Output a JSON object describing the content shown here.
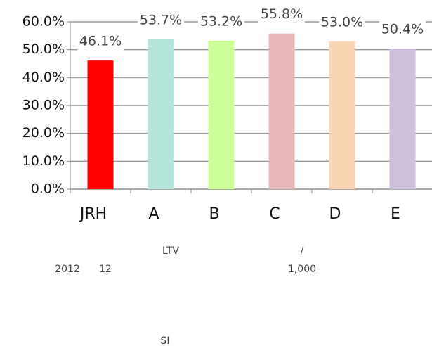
{
  "chart_data": {
    "type": "bar",
    "categories": [
      "JRH",
      "A",
      "B",
      "C",
      "D",
      "E"
    ],
    "values": [
      46.1,
      53.7,
      53.2,
      55.8,
      53.0,
      50.4
    ],
    "value_labels": [
      "46.1%",
      "53.7%",
      "53.2%",
      "55.8%",
      "53.0%",
      "50.4%"
    ],
    "colors": [
      "#ff0000",
      "#b4e6dc",
      "#ccff99",
      "#e6b8b7",
      "#fcd5b4",
      "#ccc0da"
    ],
    "ylim": [
      0,
      60
    ],
    "yticks": [
      {
        "value": 0,
        "label": "0.0%"
      },
      {
        "value": 10,
        "label": "10.0%"
      },
      {
        "value": 20,
        "label": "20.0%"
      },
      {
        "value": 30,
        "label": "30.0%"
      },
      {
        "value": 40,
        "label": "40.0%"
      },
      {
        "value": 50,
        "label": "50.0%"
      },
      {
        "value": 60,
        "label": "60.0%"
      }
    ],
    "grid": true
  },
  "notes": [
    "LTV",
    "/",
    "2012",
    "12",
    "1,000",
    "SI"
  ]
}
